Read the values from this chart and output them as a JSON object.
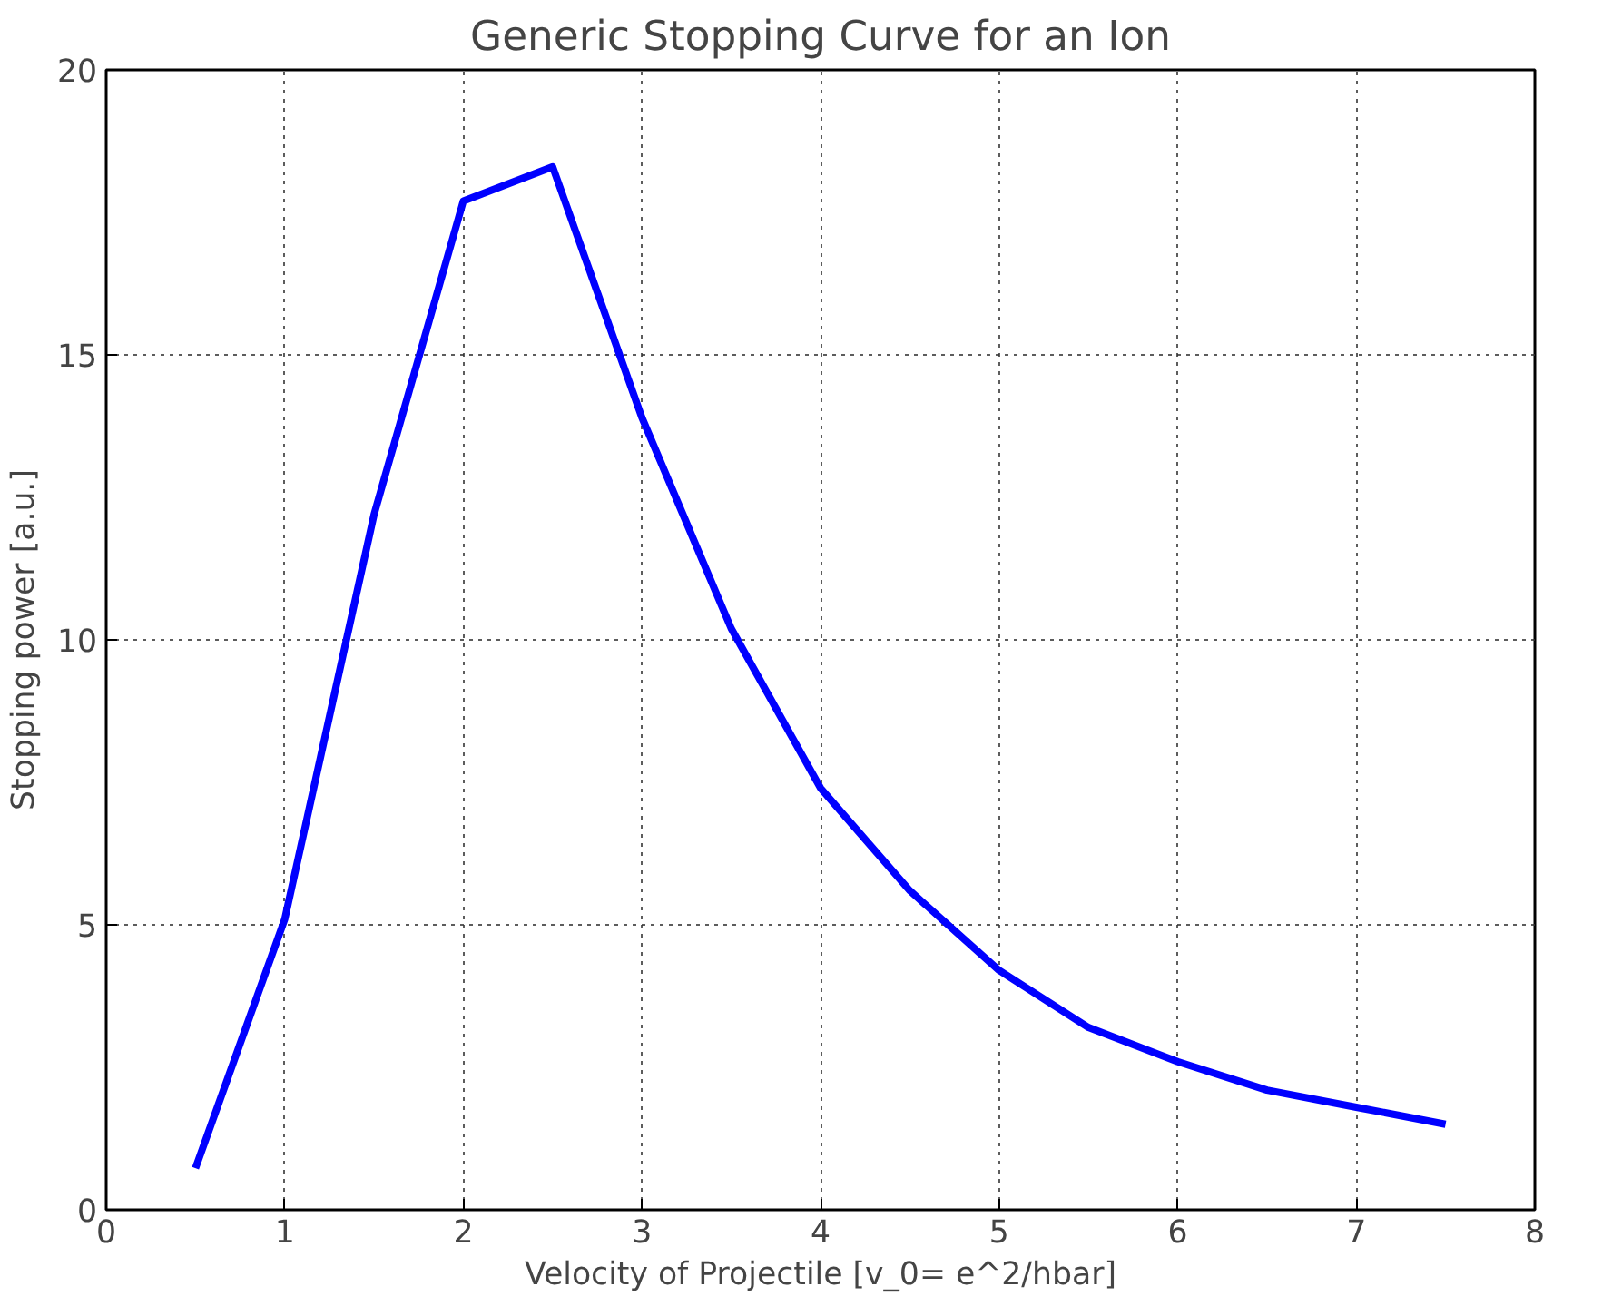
{
  "chart_data": {
    "type": "line",
    "title": "Generic Stopping Curve for an Ion",
    "xlabel": "Velocity of Projectile [v_0= e^2/hbar]",
    "ylabel": "Stopping power [a.u.]",
    "x": [
      0.5,
      1,
      1.5,
      2,
      2.5,
      3,
      3.5,
      4,
      4.5,
      5,
      5.5,
      6,
      6.5,
      7,
      7.5
    ],
    "series": [
      {
        "color": "#0000ff",
        "values": [
          0.73,
          5.1,
          12.2,
          17.7,
          18.3,
          13.9,
          10.2,
          7.4,
          5.6,
          4.2,
          3.2,
          2.6,
          2.1,
          1.8,
          1.5
        ]
      }
    ],
    "xlim": [
      0,
      8
    ],
    "ylim": [
      0,
      20
    ],
    "xticks": [
      0,
      1,
      2,
      3,
      4,
      5,
      6,
      7,
      8
    ],
    "yticks": [
      0,
      5,
      10,
      15,
      20
    ],
    "grid": true,
    "line_style": "solid"
  }
}
